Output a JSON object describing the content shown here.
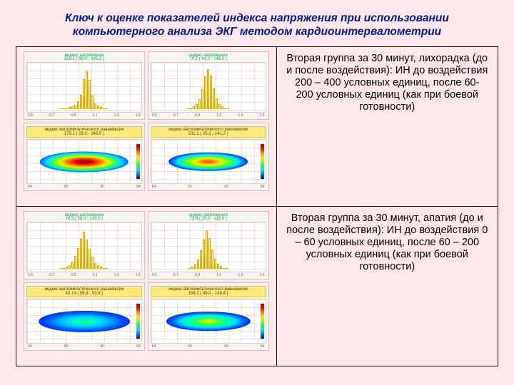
{
  "title": "Ключ к оценке показателей индекса напряжения при использовании компьютерного анализа ЭКГ методом кардиоинтервалометрии",
  "rows": [
    {
      "desc": "Вторая группа за 30 минут, лихорадка (до и после воздействия): ИН до воздействия 200 – 400 условных единиц, после 60- 200 условных единиц (как при боевой готовности)",
      "panels": {
        "histLeft": {
          "title": "индекс напряжения",
          "sub": "316.1 ( 99.0 - 145.2 )",
          "bars_pct": [
            0,
            0,
            2,
            4,
            6,
            10,
            18,
            34,
            72,
            92,
            70,
            32,
            14,
            8,
            4,
            2,
            0
          ]
        },
        "histRight": {
          "title": "индекс напряжения",
          "sub": "70.2 ( 41.0 - 145.0 )",
          "bars_pct": [
            0,
            2,
            6,
            12,
            24,
            48,
            78,
            95,
            80,
            50,
            26,
            12,
            6,
            2,
            0
          ]
        },
        "heatLeft": {
          "caption": "индекс вагосимпатического равновесия",
          "sub": "173.1 ( 28.0 - 145.0 )",
          "ellipse": {
            "w_pct": 78,
            "h_pct": 48,
            "gradient": "radial-gradient(ellipse 50% 50% at 50% 50%, #8b0000 0%, #d60000 18%, #ff3a00 30%, #ff9200 42%, #ffe400 52%, #9cff00 62%, #2cff5a 72%, #00dfff 85%, #0060ff 100%)"
          }
        },
        "heatRight": {
          "caption": "индекс вагосимпатического равновесия",
          "sub": "201.1 ( 25.2 - 141.2 )",
          "ellipse": {
            "w_pct": 70,
            "h_pct": 44,
            "gradient": "radial-gradient(ellipse 50% 50% at 50% 50%, #ff4a00 0%, #ff8c00 18%, #ffe400 32%, #9cff00 46%, #2cff5a 60%, #00dfff 78%, #006cff 92%, #0030ff 100%)"
          }
        }
      },
      "xticks": [
        "0.5",
        "0.7",
        "0.9",
        "1.1",
        "1.3",
        "1.5"
      ]
    },
    {
      "desc": "Вторая группа за 30 минут, апатия (до и после воздействия): ИН до воздействия 0 – 60 условных единиц, после 60 – 200 условных единиц (как при боевой готовности)",
      "panels": {
        "histLeft": {
          "title": "индекс напряжения",
          "sub": "19.3 ( 58.0 - 139.0 )",
          "bars_pct": [
            0,
            2,
            4,
            8,
            16,
            30,
            50,
            72,
            88,
            70,
            48,
            28,
            14,
            8,
            4,
            2,
            0
          ]
        },
        "histRight": {
          "title": "индекс напряжения",
          "sub": "73.8 ( 25.0 - 115.0 )",
          "bars_pct": [
            0,
            4,
            10,
            22,
            44,
            70,
            92,
            74,
            46,
            24,
            12,
            6,
            2,
            0
          ]
        },
        "heatLeft": {
          "caption": "индекс вагосимпатического равновесия",
          "sub": "63.14 ( 56.8 - 93.6 )",
          "ellipse": {
            "w_pct": 80,
            "h_pct": 50,
            "gradient": "radial-gradient(ellipse 50% 50% at 50% 50%, #2cff5a 0%, #00ffb0 18%, #00dfff 38%, #00a8ff 58%, #0060ff 78%, #0030ff 100%)"
          }
        },
        "heatRight": {
          "caption": "индекс вагосимпатического равновесия",
          "sub": "169.2 ( 49.0 - 148.6 )",
          "ellipse": {
            "w_pct": 74,
            "h_pct": 46,
            "gradient": "radial-gradient(ellipse 50% 50% at 50% 50%, #ffe400 0%, #9cff00 16%, #2cff5a 32%, #00ffb0 48%, #00dfff 66%, #0060ff 86%, #0030ff 100%)"
          }
        }
      },
      "xticks": [
        "0.5",
        "0.7",
        "0.9",
        "1.1",
        "1.3",
        "1.5"
      ]
    }
  ],
  "heat_xticks": [
    "64",
    "60",
    "60",
    "64"
  ]
}
